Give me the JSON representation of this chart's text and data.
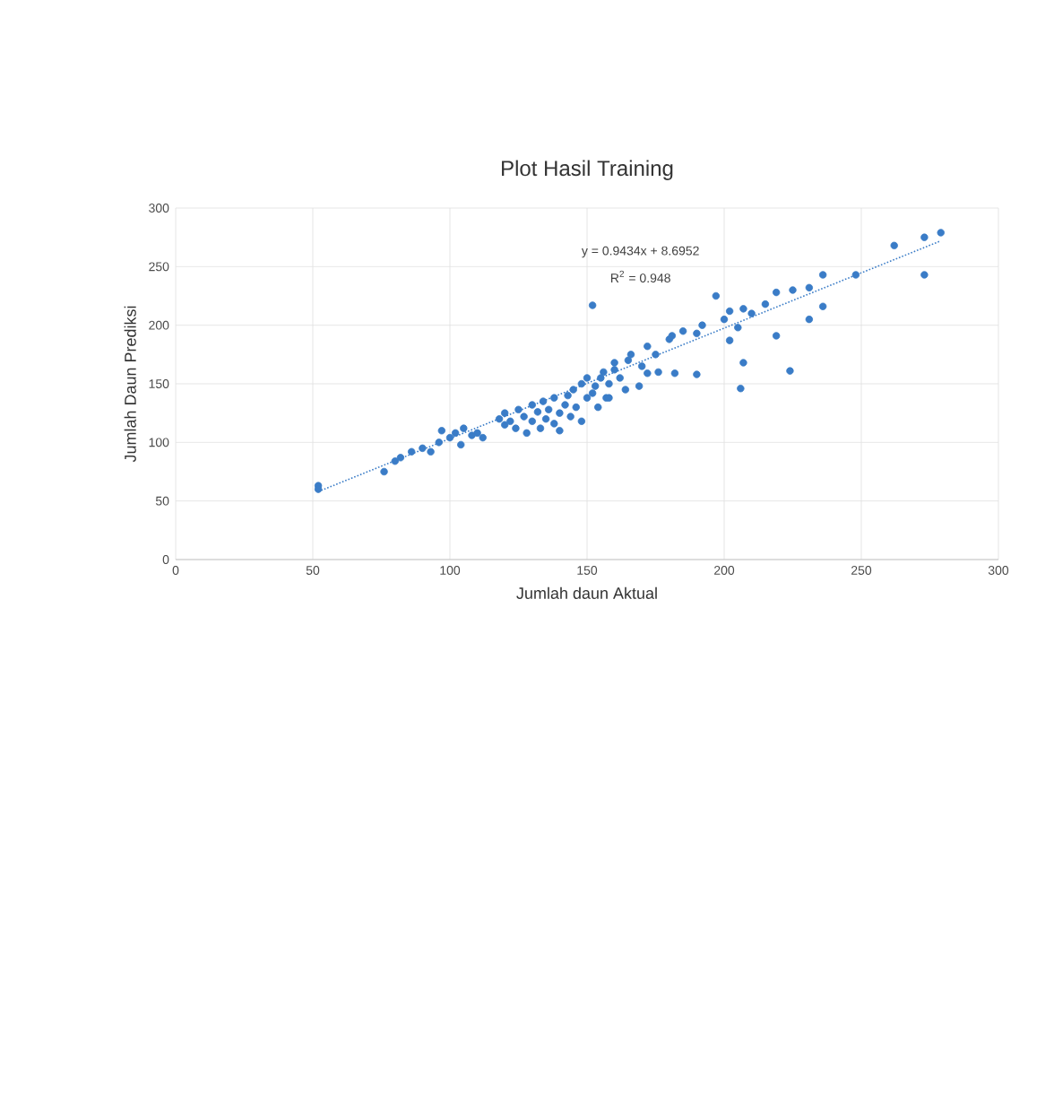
{
  "chart_data": {
    "type": "scatter",
    "title": "Plot Hasil Training",
    "xlabel": "Jumlah daun Aktual",
    "ylabel": "Jumlah Daun Prediksi",
    "xlim": [
      0,
      300
    ],
    "xticks": [
      0,
      50,
      100,
      150,
      200,
      250,
      300
    ],
    "ylim": [
      0,
      300
    ],
    "yticks": [
      0,
      50,
      100,
      150,
      200,
      250,
      300
    ],
    "grid": true,
    "marker": "circle",
    "annotations": [
      "y = 0.9434x + 8.6952",
      "R$^{2}$ = 0.948"
    ],
    "series": [
      {
        "color": "#3a7cc7",
        "x": [
          52,
          52,
          76,
          80,
          82,
          86,
          90,
          93,
          96,
          97,
          100,
          102,
          104,
          105,
          108,
          110,
          112,
          118,
          120,
          120,
          122,
          124,
          125,
          127,
          128,
          130,
          130,
          132,
          133,
          134,
          135,
          136,
          138,
          138,
          140,
          140,
          142,
          143,
          144,
          145,
          146,
          148,
          148,
          150,
          150,
          152,
          152,
          153,
          154,
          155,
          156,
          157,
          158,
          158,
          160,
          160,
          162,
          164,
          165,
          166,
          169,
          170,
          172,
          172,
          175,
          176,
          180,
          181,
          182,
          185,
          190,
          190,
          192,
          197,
          200,
          202,
          202,
          205,
          206,
          207,
          207,
          210,
          215,
          219,
          219,
          224,
          225,
          231,
          231,
          236,
          236,
          248,
          262,
          273,
          273,
          279
        ],
        "values": [
          63,
          60,
          75,
          84,
          87,
          92,
          95,
          92,
          100,
          110,
          104,
          108,
          98,
          112,
          106,
          108,
          104,
          120,
          115,
          125,
          118,
          112,
          128,
          122,
          108,
          118,
          132,
          126,
          112,
          135,
          120,
          128,
          138,
          116,
          125,
          110,
          132,
          140,
          122,
          145,
          130,
          150,
          118,
          138,
          155,
          142,
          217,
          148,
          130,
          155,
          160,
          138,
          138,
          150,
          162,
          168,
          155,
          145,
          170,
          175,
          148,
          165,
          159,
          182,
          175,
          160,
          188,
          191,
          159,
          195,
          158,
          193,
          200,
          225,
          205,
          187,
          212,
          198,
          146,
          168,
          214,
          210,
          218,
          191,
          228,
          161,
          230,
          205,
          232,
          216,
          243,
          243,
          268,
          243,
          275,
          279
        ]
      },
      {
        "type": "line",
        "color": "#3a7cc7",
        "line_style": "dotted",
        "marker": "none",
        "x": [
          52,
          279
        ],
        "values": [
          58,
          272
        ]
      }
    ]
  }
}
